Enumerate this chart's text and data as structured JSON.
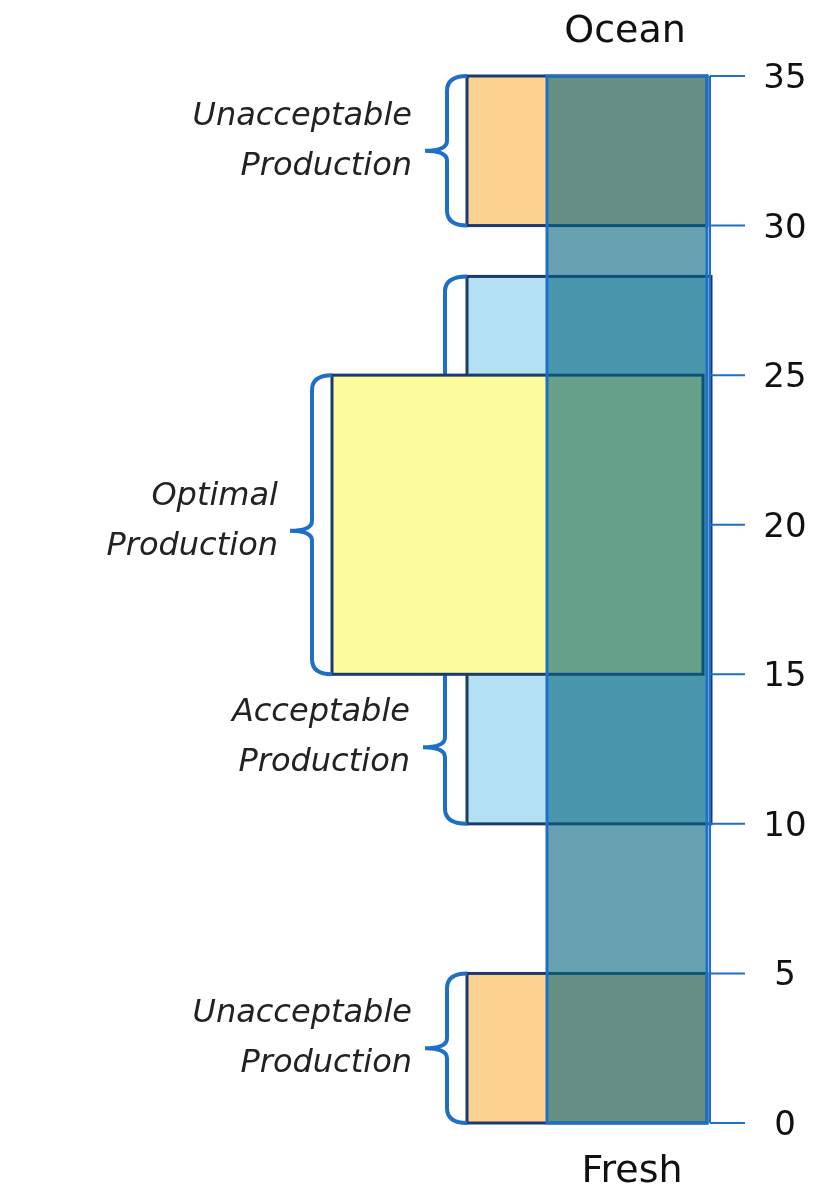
{
  "chart_data": {
    "type": "bar",
    "categories": [
      null
    ],
    "values": [
      35
    ],
    "color": "#04647f",
    "ylim": [
      0,
      35
    ],
    "yticks": [
      0,
      5,
      10,
      15,
      20,
      25,
      30,
      35
    ],
    "annotations": [
      "Ocean",
      "Fresh"
    ],
    "bands": [
      {
        "axis": "y",
        "from": 30,
        "to": 35,
        "label": "Unacceptable Production",
        "color": "#fdd18f"
      },
      {
        "axis": "y",
        "from": 10,
        "to": 28.3,
        "label": "Acceptable Production",
        "color": "#b3e1f3"
      },
      {
        "axis": "y",
        "from": 15,
        "to": 25,
        "label": "Optimal Production",
        "color": "#fcfc9c"
      },
      {
        "axis": "y",
        "from": 0,
        "to": 5,
        "label": "Unacceptable Production",
        "color": "#fdd18f"
      }
    ]
  }
}
